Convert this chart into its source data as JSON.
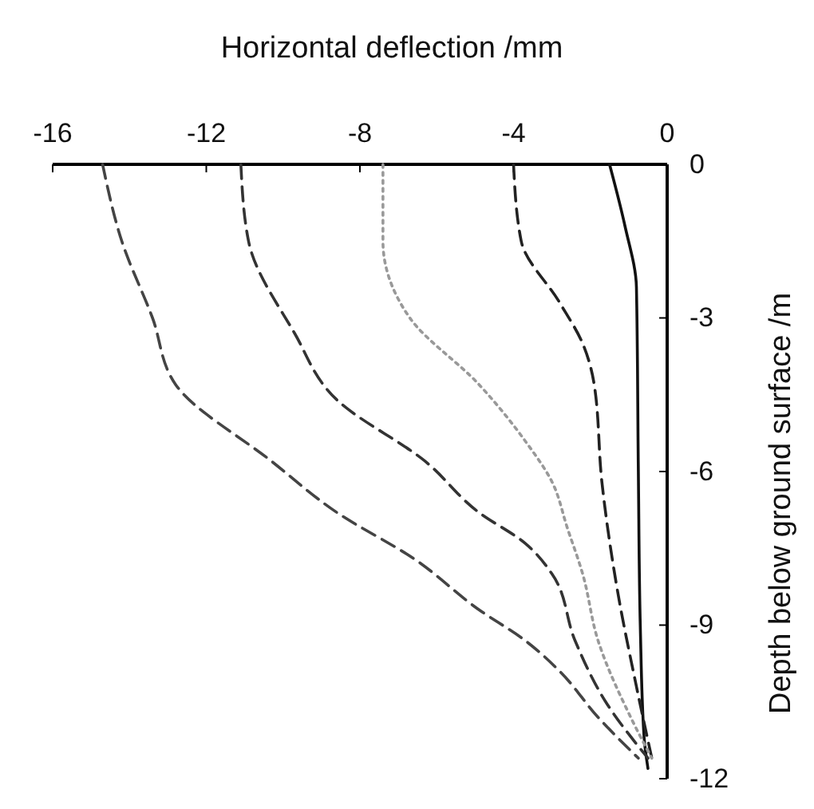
{
  "chart_data": {
    "type": "line",
    "xlabel": "Horizontal deflection /mm",
    "ylabel": "Depth below ground surface /m",
    "xlim": [
      -16,
      0
    ],
    "xticks": [
      -16,
      -12,
      -8,
      -4,
      0
    ],
    "ylim": [
      -12,
      0
    ],
    "yticks": [
      0,
      -3,
      -6,
      -9,
      -12
    ],
    "marker": "none",
    "series": [
      {
        "color": "#111111",
        "line_style": "solid",
        "x": [
          -1.5,
          -1.1,
          -0.8,
          -0.75,
          -0.7,
          -0.6,
          -0.5
        ],
        "values": [
          0,
          -1.2,
          -2.4,
          -6,
          -9,
          -11.2,
          -11.8
        ]
      },
      {
        "color": "#222222",
        "line_style": "dashed",
        "x": [
          -4.0,
          -3.8,
          -2.8,
          -2.2,
          -1.9,
          -1.7,
          -1.3,
          -0.8,
          -0.4
        ],
        "values": [
          0,
          -1.5,
          -2.7,
          -3.5,
          -4.3,
          -6.2,
          -8.3,
          -10.2,
          -11.6
        ]
      },
      {
        "color": "#999999",
        "line_style": "dotted",
        "x": [
          -7.4,
          -7.4,
          -6.7,
          -4.9,
          -3.7,
          -3.0,
          -2.6,
          -2.2,
          -1.8,
          -0.95,
          -0.4
        ],
        "values": [
          0,
          -1.5,
          -3,
          -4.3,
          -5.4,
          -6.2,
          -7.1,
          -8,
          -9.3,
          -10.8,
          -11.6
        ]
      },
      {
        "color": "#333333",
        "line_style": "dashed",
        "x": [
          -11.1,
          -10.9,
          -9.7,
          -8.6,
          -6.3,
          -4.9,
          -3.7,
          -3.0,
          -2.4,
          -1.6,
          -0.5
        ],
        "values": [
          0,
          -1.5,
          -3.3,
          -4.6,
          -5.8,
          -6.8,
          -7.4,
          -8,
          -9.3,
          -10.5,
          -11.6
        ]
      },
      {
        "color": "#444444",
        "line_style": "dashed",
        "x": [
          -14.7,
          -14.2,
          -13.4,
          -12.8,
          -10.3,
          -8.6,
          -6.6,
          -4.9,
          -3.7,
          -2.8,
          -1.8,
          -0.75
        ],
        "values": [
          0,
          -1.5,
          -3,
          -4.3,
          -5.8,
          -6.8,
          -7.7,
          -8.7,
          -9.3,
          -9.9,
          -10.8,
          -11.6
        ]
      }
    ]
  }
}
